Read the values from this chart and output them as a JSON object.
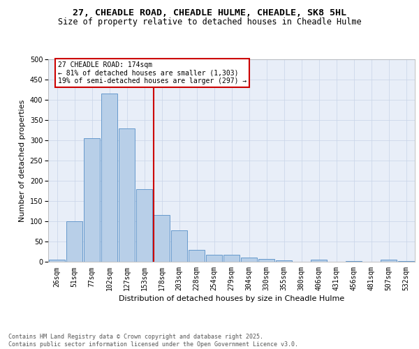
{
  "title_line1": "27, CHEADLE ROAD, CHEADLE HULME, CHEADLE, SK8 5HL",
  "title_line2": "Size of property relative to detached houses in Cheadle Hulme",
  "xlabel": "Distribution of detached houses by size in Cheadle Hulme",
  "ylabel": "Number of detached properties",
  "bar_labels": [
    "26sqm",
    "51sqm",
    "77sqm",
    "102sqm",
    "127sqm",
    "153sqm",
    "178sqm",
    "203sqm",
    "228sqm",
    "254sqm",
    "279sqm",
    "304sqm",
    "330sqm",
    "355sqm",
    "380sqm",
    "406sqm",
    "431sqm",
    "456sqm",
    "481sqm",
    "507sqm",
    "532sqm"
  ],
  "bar_values": [
    5,
    100,
    305,
    415,
    330,
    180,
    115,
    77,
    30,
    18,
    17,
    11,
    7,
    4,
    0,
    5,
    0,
    2,
    0,
    5,
    2
  ],
  "bar_color": "#b8cfe8",
  "bar_edge_color": "#6699cc",
  "vline_index": 6,
  "vline_color": "#cc0000",
  "annotation_text": "27 CHEADLE ROAD: 174sqm\n← 81% of detached houses are smaller (1,303)\n19% of semi-detached houses are larger (297) →",
  "annotation_box_color": "#cc0000",
  "ylim": [
    0,
    500
  ],
  "yticks": [
    0,
    50,
    100,
    150,
    200,
    250,
    300,
    350,
    400,
    450,
    500
  ],
  "grid_color": "#c8d4e8",
  "bg_color": "#e8eef8",
  "footer_line1": "Contains HM Land Registry data © Crown copyright and database right 2025.",
  "footer_line2": "Contains public sector information licensed under the Open Government Licence v3.0.",
  "title_fontsize": 9.5,
  "subtitle_fontsize": 8.5,
  "axis_label_fontsize": 8,
  "tick_fontsize": 7,
  "annotation_fontsize": 7,
  "footer_fontsize": 6
}
